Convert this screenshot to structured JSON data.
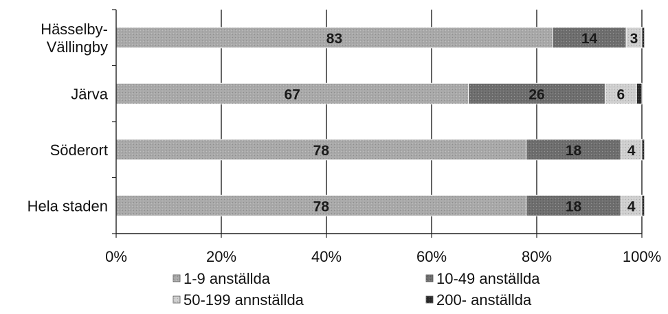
{
  "chart_data": {
    "type": "bar",
    "orientation": "horizontal",
    "stacked": true,
    "percent": true,
    "title": "",
    "xlabel": "",
    "ylabel": "",
    "xlim": [
      0,
      100
    ],
    "x_ticks": [
      "0%",
      "20%",
      "40%",
      "60%",
      "80%",
      "100%"
    ],
    "categories": [
      "Hässelby-Vällingby",
      "Järva",
      "Söderort",
      "Hela staden"
    ],
    "category_lines": [
      [
        "Hässelby-",
        "Vällingby"
      ],
      [
        "Järva"
      ],
      [
        "Söderort"
      ],
      [
        "Hela staden"
      ]
    ],
    "series": [
      {
        "name": "1-9 anställda",
        "values": [
          83,
          67,
          78,
          78
        ],
        "labels": [
          "83",
          "67",
          "78",
          "78"
        ],
        "color": "#a9a9a9"
      },
      {
        "name": "10-49 anställda",
        "values": [
          14,
          26,
          18,
          18
        ],
        "labels": [
          "14",
          "26",
          "18",
          "18"
        ],
        "color": "#6e6e6e"
      },
      {
        "name": "50-199 annställda",
        "values": [
          3,
          6,
          4,
          4
        ],
        "labels": [
          "3",
          "6",
          "4",
          "4"
        ],
        "color": "#cfcfcf"
      },
      {
        "name": "200- anställda",
        "values": [
          0.5,
          1,
          0.5,
          0.5
        ],
        "labels": [
          "",
          "",
          "",
          ""
        ],
        "color": "#2a2a2a"
      }
    ],
    "grid": true,
    "legend_position": "bottom"
  }
}
